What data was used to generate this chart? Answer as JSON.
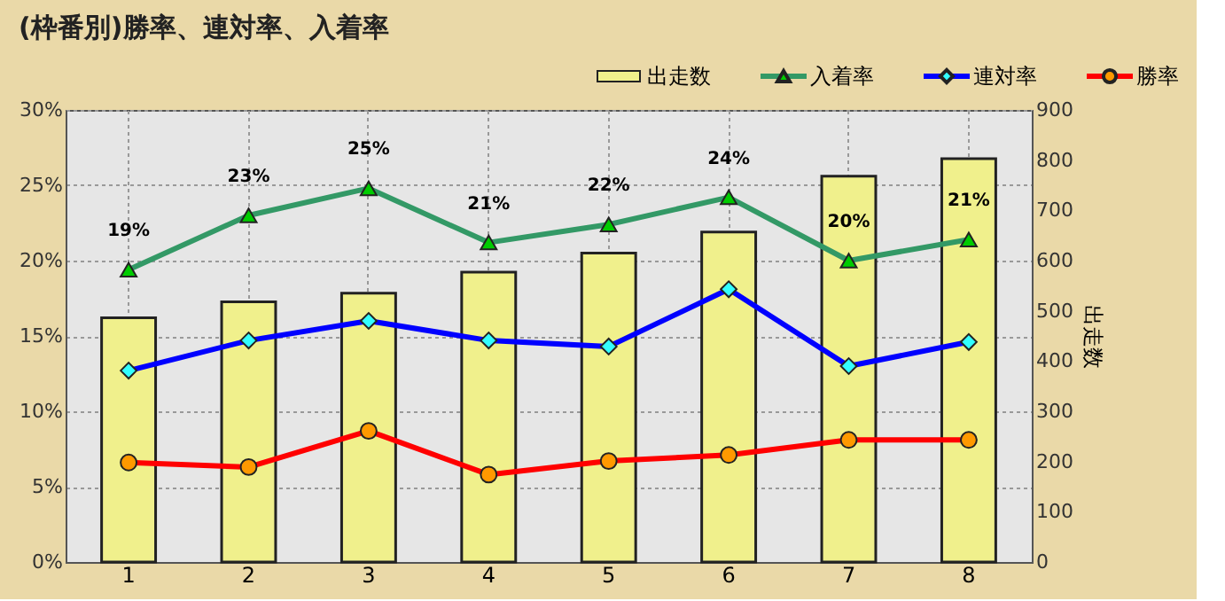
{
  "chart_data": {
    "type": "line",
    "title": "(枠番別)勝率、連対率、入着率",
    "categories": [
      "1",
      "2",
      "3",
      "4",
      "5",
      "6",
      "7",
      "8"
    ],
    "ylim": [
      0,
      30
    ],
    "yticks": [
      {
        "value": 0,
        "label": "0%"
      },
      {
        "value": 5,
        "label": "5%"
      },
      {
        "value": 10,
        "label": "10%"
      },
      {
        "value": 15,
        "label": "15%"
      },
      {
        "value": 20,
        "label": "20%"
      },
      {
        "value": 25,
        "label": "25%"
      },
      {
        "value": 30,
        "label": "30%"
      }
    ],
    "y2lim": [
      0,
      900
    ],
    "y2ticks": [
      0,
      100,
      200,
      300,
      400,
      500,
      600,
      700,
      800,
      900
    ],
    "y2label": "出走数",
    "grid": true,
    "legend": "top right",
    "line_style": "solid",
    "series": [
      {
        "name": "出走数",
        "type": "bar",
        "axis": "y2",
        "color": "#f0f08c",
        "values": [
          486,
          518,
          535,
          577,
          615,
          657,
          768,
          803
        ]
      },
      {
        "name": "入着率",
        "marker": "triangle",
        "color": "#339966",
        "values": [
          19.4,
          23.0,
          24.8,
          21.2,
          22.4,
          24.2,
          20.0,
          21.4
        ],
        "value_labels": [
          "19%",
          "23%",
          "25%",
          "21%",
          "22%",
          "24%",
          "20%",
          "21%"
        ]
      },
      {
        "name": "連対率",
        "marker": "diamond",
        "color": "#0000ff",
        "values": [
          12.7,
          14.7,
          16.0,
          14.7,
          14.3,
          18.1,
          13.0,
          14.6
        ]
      },
      {
        "name": "勝率",
        "marker": "circle",
        "color": "#ff0000",
        "values": [
          6.6,
          6.3,
          8.7,
          5.8,
          6.7,
          7.1,
          8.1,
          8.1
        ]
      }
    ]
  }
}
